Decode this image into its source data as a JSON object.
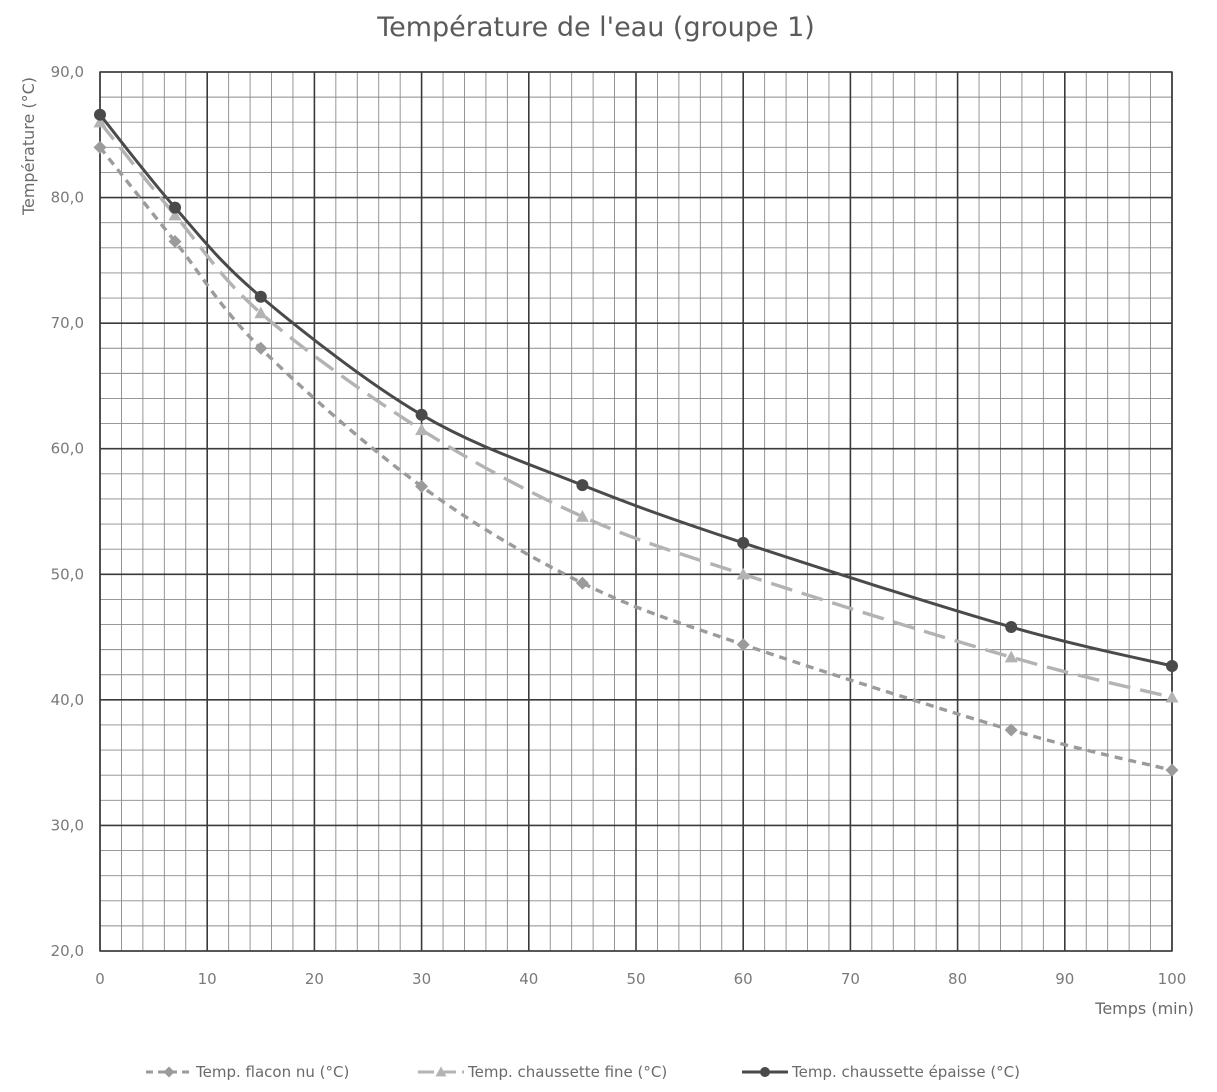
{
  "chart_data": {
    "type": "line",
    "title": "Température de l'eau (groupe 1)",
    "xlabel": "Temps (min)",
    "ylabel": "Température (°C)",
    "xlim": [
      0,
      100
    ],
    "ylim": [
      20,
      90
    ],
    "x_ticks": [
      0,
      10,
      20,
      30,
      40,
      50,
      60,
      70,
      80,
      90,
      100
    ],
    "x_tick_labels": [
      "0",
      "10",
      "20",
      "30",
      "40",
      "50",
      "60",
      "70",
      "80",
      "90",
      "100"
    ],
    "y_ticks": [
      20,
      30,
      40,
      50,
      60,
      70,
      80,
      90
    ],
    "y_tick_labels": [
      "20,0",
      "30,0",
      "40,0",
      "50,0",
      "60,0",
      "70,0",
      "80,0",
      "90,0"
    ],
    "grid": true,
    "legend_position": "bottom",
    "series": [
      {
        "name": "Temp. flacon nu (°C)",
        "x": [
          0,
          7,
          15,
          30,
          45,
          60,
          85,
          100
        ],
        "values": [
          84.0,
          76.5,
          68.0,
          57.0,
          49.3,
          44.4,
          37.6,
          34.4
        ],
        "color": "#9b9b9b",
        "marker": "diamond",
        "line_style": "dashed"
      },
      {
        "name": "Temp. chaussette fine (°C)",
        "x": [
          0,
          7,
          15,
          30,
          45,
          60,
          85,
          100
        ],
        "values": [
          86.0,
          78.6,
          70.8,
          61.5,
          54.6,
          50.0,
          43.4,
          40.2
        ],
        "color": "#b3b3b3",
        "marker": "triangle",
        "line_style": "long-dash"
      },
      {
        "name": "Temp. chaussette épaisse (°C)",
        "x": [
          0,
          7,
          15,
          30,
          45,
          60,
          85,
          100
        ],
        "values": [
          86.6,
          79.2,
          72.1,
          62.7,
          57.1,
          52.5,
          45.8,
          42.7
        ],
        "color": "#4a4a4a",
        "marker": "circle",
        "line_style": "solid"
      }
    ]
  }
}
